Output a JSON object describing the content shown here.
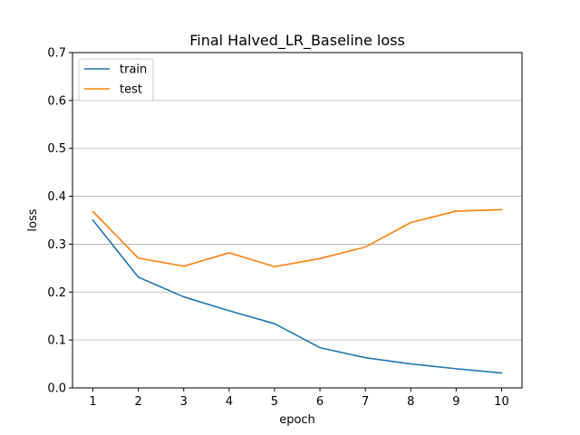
{
  "chart_data": {
    "type": "line",
    "title": "Final Halved_LR_Baseline loss",
    "xlabel": "epoch",
    "ylabel": "loss",
    "x": [
      1,
      2,
      3,
      4,
      5,
      6,
      7,
      8,
      9,
      10
    ],
    "xticks": [
      "1",
      "2",
      "3",
      "4",
      "5",
      "6",
      "7",
      "8",
      "9",
      "10"
    ],
    "yticks": [
      "0.0",
      "0.1",
      "0.2",
      "0.3",
      "0.4",
      "0.5",
      "0.6",
      "0.7"
    ],
    "ylim": [
      0,
      0.7
    ],
    "grid": "horizontal",
    "legend_position": "top-left",
    "series": [
      {
        "name": "train",
        "color": "#1f77b4",
        "values": [
          0.35,
          0.231,
          0.19,
          0.161,
          0.134,
          0.084,
          0.063,
          0.05,
          0.04,
          0.031
        ]
      },
      {
        "name": "test",
        "color": "#ff7f0e",
        "values": [
          0.368,
          0.271,
          0.254,
          0.282,
          0.253,
          0.27,
          0.294,
          0.345,
          0.369,
          0.372
        ]
      }
    ]
  }
}
